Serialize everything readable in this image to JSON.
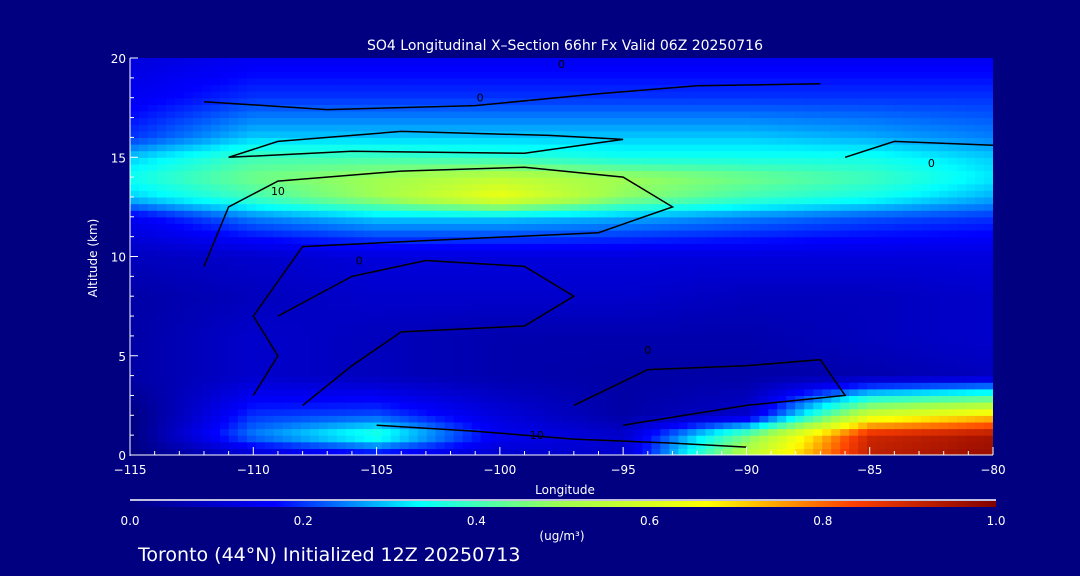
{
  "chart_data": {
    "type": "heatmap",
    "title": "SO4 Longitudinal X–Section 66hr  Fx Valid 06Z 20250716",
    "xlabel": "Longitude",
    "ylabel": "Altitude (km)",
    "xlim": [
      -115,
      -80
    ],
    "ylim": [
      0,
      20
    ],
    "xticks": [
      "−115",
      "−110",
      "−105",
      "−100",
      "−95",
      "−90",
      "−85",
      "−80"
    ],
    "xtick_values": [
      -115,
      -110,
      -105,
      -100,
      -95,
      -90,
      -85,
      -80
    ],
    "yticks": [
      "0",
      "5",
      "10",
      "15",
      "20"
    ],
    "ytick_values": [
      0,
      5,
      10,
      15,
      20
    ],
    "colorbar": {
      "range": [
        0,
        1
      ],
      "ticks": [
        "0.0",
        "0.2",
        "0.4",
        "0.6",
        "0.8",
        "1.0"
      ],
      "tick_values": [
        0,
        0.2,
        0.4,
        0.6,
        0.8,
        1.0
      ],
      "units": "(ug/m³)",
      "colors": [
        "#000080",
        "#0000ff",
        "#00ffff",
        "#a0ff50",
        "#ffff00",
        "#ff4000",
        "#800000"
      ]
    },
    "grid_lon": [
      -115,
      -110,
      -105,
      -100,
      -95,
      -90,
      -85,
      -80
    ],
    "grid_alt": [
      20,
      18,
      16,
      15,
      14,
      13,
      12,
      10,
      8,
      6,
      4,
      2,
      1,
      0
    ],
    "values": [
      [
        0.12,
        0.15,
        0.15,
        0.15,
        0.15,
        0.15,
        0.15,
        0.15
      ],
      [
        0.15,
        0.2,
        0.2,
        0.2,
        0.2,
        0.2,
        0.2,
        0.2
      ],
      [
        0.2,
        0.3,
        0.3,
        0.3,
        0.3,
        0.3,
        0.28,
        0.25
      ],
      [
        0.3,
        0.4,
        0.4,
        0.38,
        0.35,
        0.35,
        0.35,
        0.3
      ],
      [
        0.35,
        0.45,
        0.5,
        0.55,
        0.5,
        0.45,
        0.4,
        0.32
      ],
      [
        0.3,
        0.4,
        0.5,
        0.64,
        0.48,
        0.4,
        0.35,
        0.28
      ],
      [
        0.15,
        0.25,
        0.3,
        0.3,
        0.28,
        0.25,
        0.22,
        0.2
      ],
      [
        0.08,
        0.1,
        0.12,
        0.12,
        0.12,
        0.12,
        0.12,
        0.12
      ],
      [
        0.05,
        0.08,
        0.1,
        0.1,
        0.1,
        0.08,
        0.08,
        0.1
      ],
      [
        0.05,
        0.1,
        0.08,
        0.06,
        0.06,
        0.06,
        0.08,
        0.1
      ],
      [
        0.05,
        0.1,
        0.08,
        0.06,
        0.05,
        0.05,
        0.06,
        0.08
      ],
      [
        0.0,
        0.2,
        0.22,
        0.12,
        0.05,
        0.1,
        0.6,
        0.7
      ],
      [
        0.0,
        0.25,
        0.38,
        0.15,
        0.1,
        0.45,
        0.9,
        0.95
      ],
      [
        0.0,
        0.1,
        0.15,
        0.1,
        0.1,
        0.55,
        0.92,
        0.97
      ]
    ],
    "contours": [
      {
        "label": "0",
        "points": [
          [
            -112,
            17.8
          ],
          [
            -107,
            17.4
          ],
          [
            -101,
            17.6
          ],
          [
            -96,
            18.2
          ],
          [
            -92,
            18.6
          ],
          [
            -87,
            18.7
          ]
        ]
      },
      {
        "label": "0",
        "points": [
          [
            -111,
            15
          ],
          [
            -109,
            15.8
          ],
          [
            -104,
            16.3
          ],
          [
            -98,
            16.1
          ],
          [
            -95,
            15.9
          ],
          [
            -99,
            15.2
          ],
          [
            -106,
            15.3
          ],
          [
            -111,
            15
          ]
        ]
      },
      {
        "label": "10",
        "points": [
          [
            -112,
            9.5
          ],
          [
            -111,
            12.5
          ],
          [
            -109,
            13.8
          ],
          [
            -104,
            14.3
          ],
          [
            -99,
            14.5
          ],
          [
            -95,
            14
          ],
          [
            -93,
            12.5
          ],
          [
            -96,
            11.2
          ],
          [
            -103,
            10.8
          ],
          [
            -108,
            10.5
          ],
          [
            -110,
            7
          ],
          [
            -109,
            5
          ],
          [
            -110,
            3
          ]
        ]
      },
      {
        "label": "0",
        "points": [
          [
            -109,
            7
          ],
          [
            -106,
            9
          ],
          [
            -103,
            9.8
          ],
          [
            -99,
            9.5
          ],
          [
            -97,
            8
          ],
          [
            -99,
            6.5
          ],
          [
            -104,
            6.2
          ],
          [
            -106,
            4.5
          ],
          [
            -108,
            2.5
          ]
        ]
      },
      {
        "label": "0",
        "points": [
          [
            -97,
            2.5
          ],
          [
            -94,
            4.3
          ],
          [
            -90,
            4.5
          ],
          [
            -87,
            4.8
          ],
          [
            -86,
            3
          ],
          [
            -90,
            2.5
          ],
          [
            -95,
            1.5
          ]
        ]
      },
      {
        "label": "0",
        "points": [
          [
            -86,
            15
          ],
          [
            -84,
            15.8
          ],
          [
            -80,
            15.6
          ]
        ]
      },
      {
        "label": "10",
        "points": [
          [
            -105,
            1.5
          ],
          [
            -101,
            1.2
          ],
          [
            -97,
            0.8
          ],
          [
            -93,
            0.6
          ],
          [
            -90,
            0.4
          ]
        ]
      }
    ],
    "contour_labels": [
      {
        "text": "0",
        "lon": -97.5,
        "alt": 19.5
      },
      {
        "text": "0",
        "lon": -100.8,
        "alt": 17.8
      },
      {
        "text": "10",
        "lon": -109,
        "alt": 13.1
      },
      {
        "text": "0",
        "lon": -82.5,
        "alt": 14.5
      },
      {
        "text": "0",
        "lon": -105.7,
        "alt": 9.6
      },
      {
        "text": "0",
        "lon": -94,
        "alt": 5.1
      },
      {
        "text": "10",
        "lon": -98.5,
        "alt": 0.8
      }
    ]
  },
  "footer": {
    "location_text": "Toronto (44°N) Initialized 12Z 20250713"
  }
}
